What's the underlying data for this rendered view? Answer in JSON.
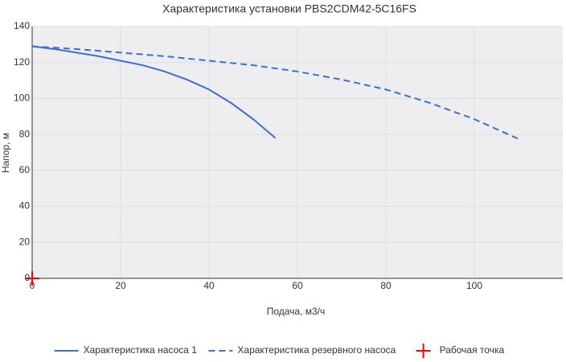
{
  "chart_data": {
    "type": "line",
    "title": "Характеристика установки PBS2CDM42-5C16FS",
    "x_label": "Подача, м3/ч",
    "y_label": "Напор, м",
    "xlim": [
      0,
      120
    ],
    "ylim": [
      0,
      140
    ],
    "xticks": [
      0,
      20,
      40,
      60,
      80,
      100
    ],
    "yticks": [
      0,
      20,
      40,
      60,
      80,
      100,
      120,
      140
    ],
    "grid": true,
    "legend": "bottom",
    "series": [
      {
        "name": "Характеристика насоса 1",
        "color": "#3b6fd4",
        "style": "solid",
        "x": [
          0,
          5,
          10,
          15,
          20,
          25,
          30,
          35,
          40,
          45,
          50,
          55
        ],
        "values": [
          129,
          127.5,
          125.5,
          123.5,
          121,
          118.5,
          115,
          110.5,
          105,
          97.5,
          88.5,
          78
        ]
      },
      {
        "name": "Характеристика резервного насоса",
        "color": "#3b6fd4",
        "style": "dashed",
        "x": [
          0,
          10,
          20,
          30,
          40,
          50,
          60,
          70,
          80,
          90,
          100,
          110
        ],
        "values": [
          129,
          127.5,
          125.5,
          123.5,
          121,
          118.5,
          115,
          110.5,
          105,
          97.5,
          88.5,
          77.5
        ]
      },
      {
        "name": "Рабочая точка",
        "color": "#ff0000",
        "style": "marker",
        "x": [
          0
        ],
        "values": [
          0
        ]
      }
    ]
  }
}
